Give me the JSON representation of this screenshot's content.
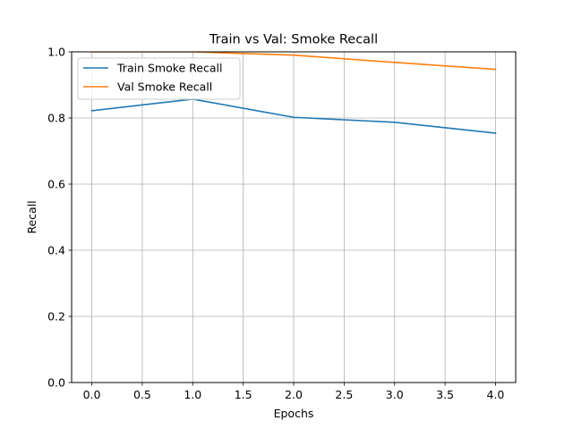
{
  "chart_data": {
    "type": "line",
    "title": "Train vs Val: Smoke Recall",
    "xlabel": "Epochs",
    "ylabel": "Recall",
    "x": [
      0,
      1,
      2,
      3,
      4
    ],
    "xlim": [
      -0.2,
      4.2
    ],
    "ylim": [
      0.0,
      1.0
    ],
    "xticks": [
      0.0,
      0.5,
      1.0,
      1.5,
      2.0,
      2.5,
      3.0,
      3.5,
      4.0
    ],
    "xtick_labels": [
      "0.0",
      "0.5",
      "1.0",
      "1.5",
      "2.0",
      "2.5",
      "3.0",
      "3.5",
      "4.0"
    ],
    "yticks": [
      0.0,
      0.2,
      0.4,
      0.6,
      0.8,
      1.0
    ],
    "ytick_labels": [
      "0.0",
      "0.2",
      "0.4",
      "0.6",
      "0.8",
      "1.0"
    ],
    "grid": true,
    "legend_position": "top-left",
    "series": [
      {
        "name": "Train Smoke Recall",
        "color": "#1f77b4",
        "values": [
          0.822,
          0.857,
          0.802,
          0.787,
          0.754
        ]
      },
      {
        "name": "Val Smoke Recall",
        "color": "#ff7f0e",
        "values": [
          1.0,
          1.0,
          0.99,
          0.968,
          0.947
        ]
      }
    ]
  }
}
